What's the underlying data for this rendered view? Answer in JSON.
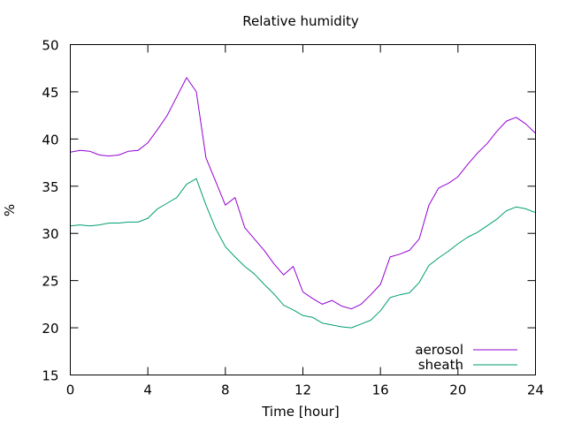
{
  "chart_data": {
    "type": "line",
    "title": "Relative humidity",
    "xlabel": "Time [hour]",
    "ylabel": "%",
    "xlim": [
      0,
      24
    ],
    "ylim": [
      15,
      50
    ],
    "xticks": [
      0,
      4,
      8,
      12,
      16,
      20,
      24
    ],
    "yticks": [
      15,
      20,
      25,
      30,
      35,
      40,
      45,
      50
    ],
    "grid": false,
    "legend_position": "bottom-right",
    "series": [
      {
        "name": "aerosol",
        "color": "#9400d3",
        "x": [
          0,
          0.5,
          1,
          1.5,
          2,
          2.5,
          3,
          3.5,
          4,
          4.5,
          5,
          5.5,
          6,
          6.5,
          7,
          7.5,
          8,
          8.5,
          9,
          9.5,
          10,
          10.5,
          11,
          11.5,
          12,
          12.5,
          13,
          13.5,
          14,
          14.5,
          15,
          15.5,
          16,
          16.5,
          17,
          17.5,
          18,
          18.5,
          19,
          19.5,
          20,
          20.5,
          21,
          21.5,
          22,
          22.5,
          23,
          23.5,
          24
        ],
        "values": [
          38.6,
          38.8,
          38.7,
          38.3,
          38.2,
          38.3,
          38.7,
          38.8,
          39.6,
          41.0,
          42.5,
          44.5,
          46.5,
          45.0,
          38.0,
          35.5,
          33.0,
          33.8,
          30.6,
          29.4,
          28.2,
          26.8,
          25.6,
          26.5,
          23.8,
          23.1,
          22.5,
          22.9,
          22.3,
          22.0,
          22.5,
          23.5,
          24.6,
          27.5,
          27.8,
          28.2,
          29.4,
          33.0,
          34.8,
          35.3,
          36.0,
          37.3,
          38.5,
          39.5,
          40.8,
          41.9,
          42.3,
          41.6,
          40.6
        ]
      },
      {
        "name": "sheath",
        "color": "#009e73",
        "x": [
          0,
          0.5,
          1,
          1.5,
          2,
          2.5,
          3,
          3.5,
          4,
          4.5,
          5,
          5.5,
          6,
          6.5,
          7,
          7.5,
          8,
          8.5,
          9,
          9.5,
          10,
          10.5,
          11,
          11.5,
          12,
          12.5,
          13,
          13.5,
          14,
          14.5,
          15,
          15.5,
          16,
          16.5,
          17,
          17.5,
          18,
          18.5,
          19,
          19.5,
          20,
          20.5,
          21,
          21.5,
          22,
          22.5,
          23,
          23.5,
          24
        ],
        "values": [
          30.8,
          30.9,
          30.8,
          30.9,
          31.1,
          31.1,
          31.2,
          31.2,
          31.6,
          32.6,
          33.2,
          33.8,
          35.2,
          35.8,
          33.0,
          30.5,
          28.6,
          27.5,
          26.5,
          25.7,
          24.6,
          23.6,
          22.4,
          21.9,
          21.3,
          21.1,
          20.5,
          20.3,
          20.1,
          20.0,
          20.4,
          20.8,
          21.8,
          23.2,
          23.5,
          23.7,
          24.8,
          26.6,
          27.4,
          28.1,
          28.9,
          29.6,
          30.1,
          30.8,
          31.5,
          32.4,
          32.8,
          32.6,
          32.2
        ]
      }
    ]
  }
}
